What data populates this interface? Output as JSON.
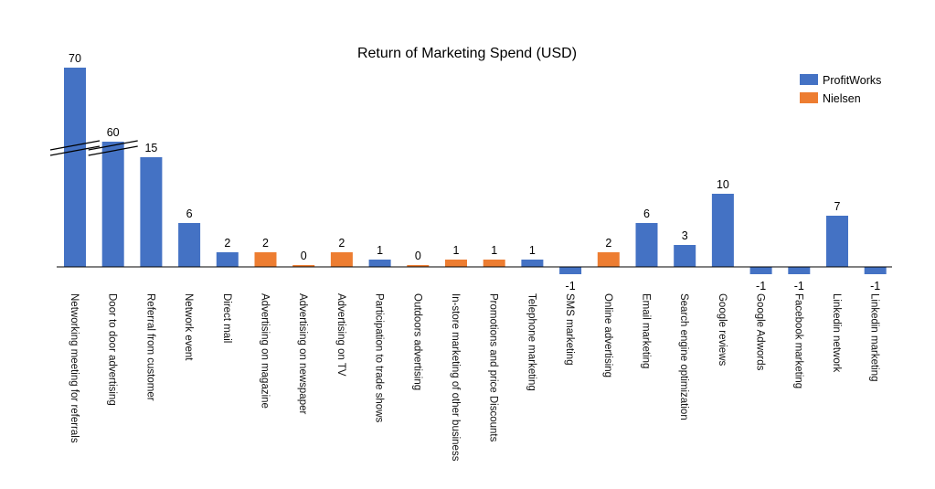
{
  "chart_data": {
    "type": "bar",
    "title": "Return of Marketing Spend  (USD)",
    "xlabel": "",
    "ylabel": "",
    "axis_break": true,
    "categories": [
      "Networking meeting for referrals",
      "Door to door advertising",
      "Referral from customer",
      "Network event",
      "Direct mail",
      "Advertising on magazine",
      "Advertising on newspaper",
      "Advertising on TV",
      "Participation to trade shows",
      "Outdoors advertising",
      "In-store marketing of other business",
      "Promotions and price Discounts",
      "Telephone marketing",
      "SMS marketing",
      "Online advertising",
      "Email marketing",
      "Search engine optimization",
      "Google reviews",
      "Google Adwords",
      "Facebook marketing",
      "Linkedin network",
      "Linkedin marketing"
    ],
    "values": [
      70,
      60,
      15,
      6,
      2,
      2,
      0,
      2,
      1,
      0,
      1,
      1,
      1,
      -1,
      2,
      6,
      3,
      10,
      -1,
      -1,
      7,
      -1
    ],
    "value_labels": [
      "70",
      "60",
      "15",
      "6",
      "2",
      "2",
      "0",
      "2",
      "1",
      "0",
      "1",
      "1",
      "1",
      "-1",
      "2",
      "6",
      "3",
      "10",
      "-1",
      "-1",
      "7",
      "-1"
    ],
    "source": [
      "ProfitWorks",
      "ProfitWorks",
      "ProfitWorks",
      "ProfitWorks",
      "ProfitWorks",
      "Nielsen",
      "Nielsen",
      "Nielsen",
      "ProfitWorks",
      "Nielsen",
      "Nielsen",
      "Nielsen",
      "ProfitWorks",
      "ProfitWorks",
      "Nielsen",
      "ProfitWorks",
      "ProfitWorks",
      "ProfitWorks",
      "ProfitWorks",
      "ProfitWorks",
      "ProfitWorks",
      "ProfitWorks"
    ],
    "legend": {
      "position": "top-right",
      "entries": [
        {
          "name": "ProfitWorks",
          "color": "#4472C4"
        },
        {
          "name": "Nielsen",
          "color": "#ED7D31"
        }
      ]
    },
    "grid": false
  }
}
